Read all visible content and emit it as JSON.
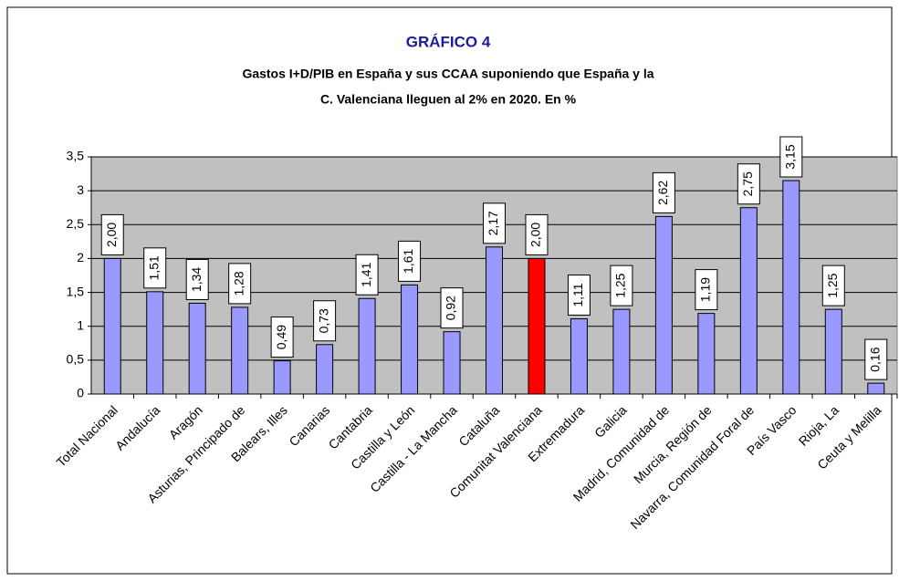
{
  "chart_data": {
    "type": "bar",
    "title": "GRÁFICO 4",
    "subtitle": [
      "Gastos I+D/PIB en España y sus CCAA suponiendo que España y la",
      "C. Valenciana lleguen al 2% en 2020. En %"
    ],
    "categories": [
      "Total Nacional",
      "Andalucía",
      "Aragón",
      "Asturias, Principado de",
      "Balears, Illes",
      "Canarias",
      "Cantabria",
      "Castilla y León",
      "Castilla - La Mancha",
      "Cataluña",
      "Comunitat Valenciana",
      "Extremadura",
      "Galicia",
      "Madrid, Comunidad de",
      "Murcia, Región de",
      "Navarra, Comunidad Foral de",
      "País Vasco",
      "Rioja, La",
      "Ceuta y Melilla"
    ],
    "values": [
      2.0,
      1.51,
      1.34,
      1.28,
      0.49,
      0.73,
      1.41,
      1.61,
      0.92,
      2.17,
      2.0,
      1.11,
      1.25,
      2.62,
      1.19,
      2.75,
      3.15,
      1.25,
      0.16
    ],
    "value_labels": [
      "2,00",
      "1,51",
      "1,34",
      "1,28",
      "0,49",
      "0,73",
      "1,41",
      "1,61",
      "0,92",
      "2,17",
      "2,00",
      "1,11",
      "1,25",
      "2,62",
      "1,19",
      "2,75",
      "3,15",
      "1,25",
      "0,16"
    ],
    "colors": [
      "#9999ff",
      "#9999ff",
      "#9999ff",
      "#9999ff",
      "#9999ff",
      "#9999ff",
      "#9999ff",
      "#9999ff",
      "#9999ff",
      "#9999ff",
      "#ff0000",
      "#9999ff",
      "#9999ff",
      "#9999ff",
      "#9999ff",
      "#9999ff",
      "#9999ff",
      "#9999ff",
      "#9999ff"
    ],
    "ylim": [
      0,
      3.5
    ],
    "yticks": [
      0,
      {
        "value": 0.5,
        "label": "0,5"
      },
      1,
      {
        "value": 1.5,
        "label": "1,5"
      },
      2,
      {
        "value": 2.5,
        "label": "2,5"
      },
      3,
      {
        "value": 3.5,
        "label": "3,5"
      }
    ],
    "grid": true
  }
}
